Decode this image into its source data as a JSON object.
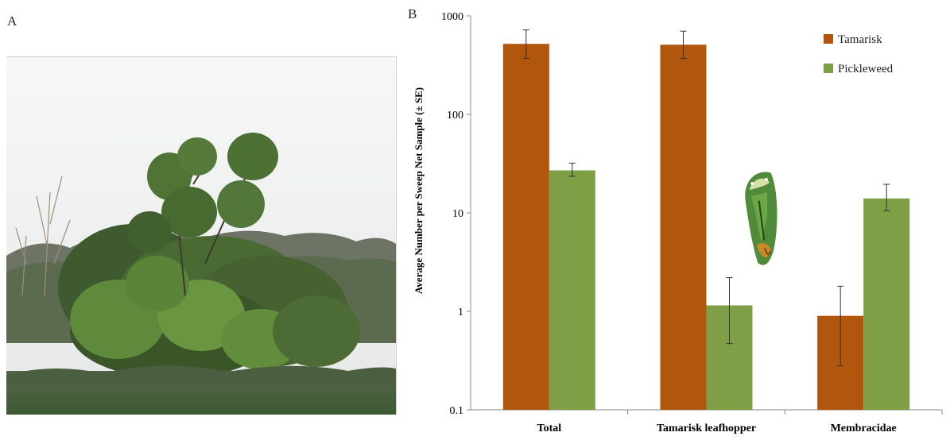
{
  "panels": {
    "a": "A",
    "b": "B"
  },
  "photo": {
    "icon": "tamarisk-shrub-photo"
  },
  "inset": {
    "icon": "leafhopper-insect-image"
  },
  "colors": {
    "tamarisk": "#b0560d",
    "pickleweed": "#7e9f46",
    "error": "#333333"
  },
  "chart_data": {
    "type": "bar",
    "categories": [
      "Total",
      "Tamarisk leafhopper",
      "Membracidae"
    ],
    "series": [
      {
        "name": "Tamarisk",
        "values": [
          520,
          510,
          0.9
        ],
        "err_low": [
          370,
          370,
          0.28
        ],
        "err_high": [
          720,
          700,
          1.8
        ]
      },
      {
        "name": "Pickleweed",
        "values": [
          27,
          1.15,
          14
        ],
        "err_low": [
          23.5,
          0.47,
          10.5
        ],
        "err_high": [
          32,
          2.2,
          19.5
        ]
      }
    ],
    "ylabel": "Average Number per Sweep Net Sample (± SE)",
    "xlabel": "",
    "yscale": "log",
    "ylim": [
      0.1,
      1000
    ],
    "yticks": [
      "0.1",
      "1",
      "10",
      "100",
      "1000"
    ],
    "legend_position": "top-right",
    "grid": false
  }
}
